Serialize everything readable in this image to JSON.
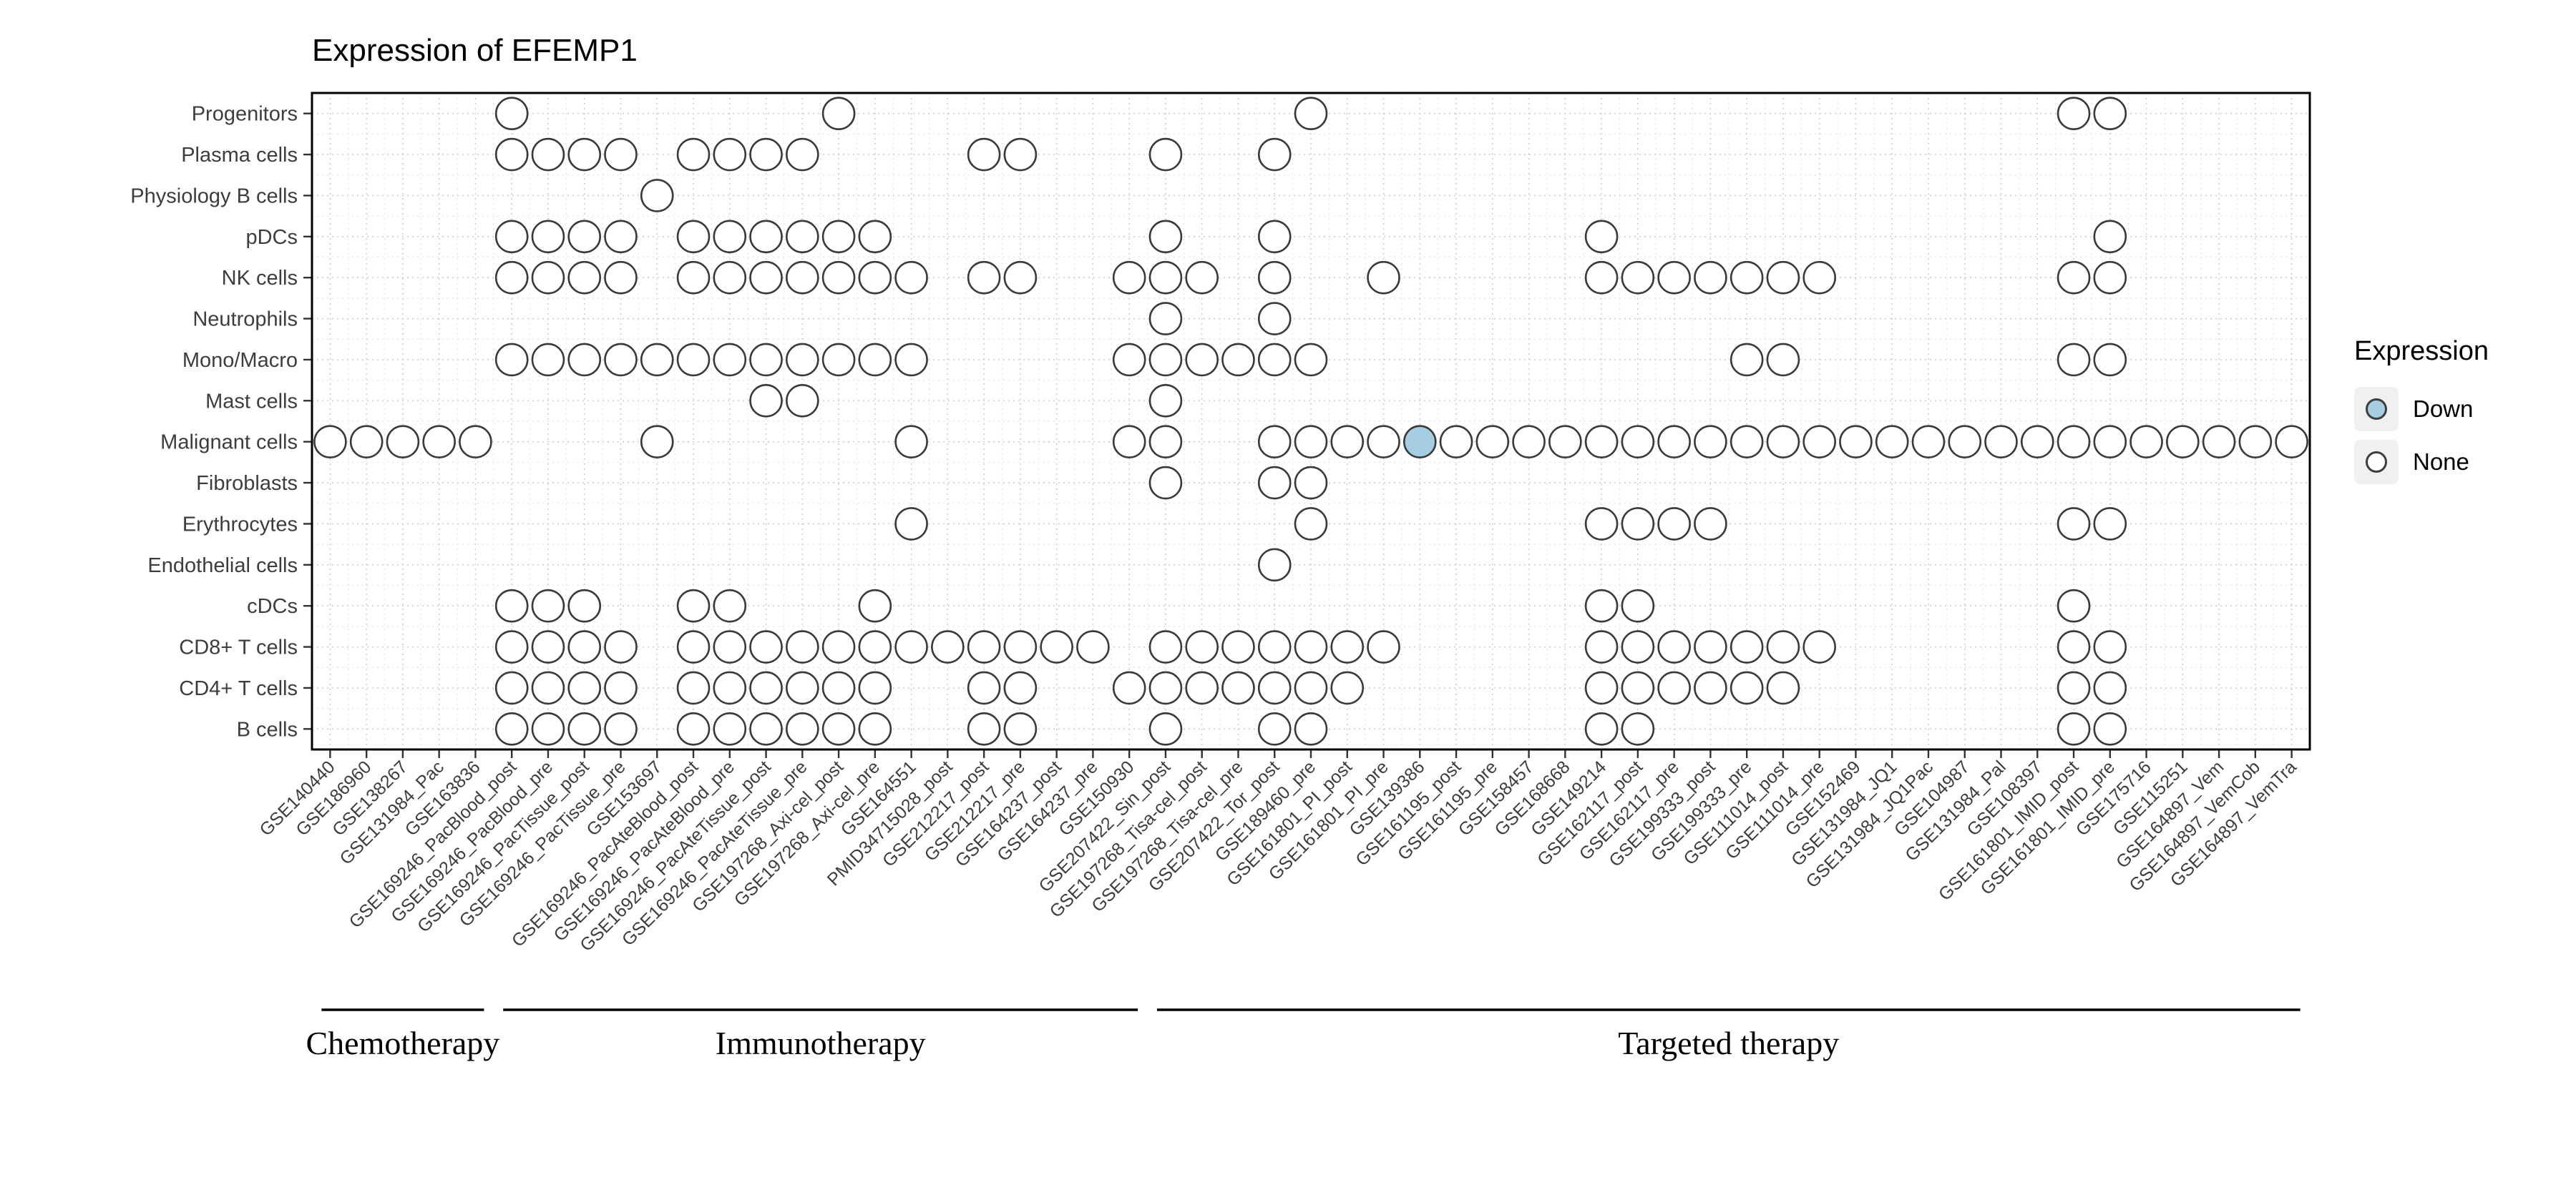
{
  "title": "Expression of EFEMP1",
  "legend": {
    "title": "Expression",
    "items": [
      {
        "label": "Down",
        "color": "#a6cee3"
      },
      {
        "label": "None",
        "color": "#ffffff"
      }
    ]
  },
  "chart_data": {
    "type": "dot-matrix",
    "title": "Expression of EFEMP1",
    "gene": "EFEMP1",
    "x_axis": "dataset",
    "y_axis": "cell type",
    "legend_title": "Expression",
    "legend_values": [
      "Down",
      "None"
    ],
    "rows": [
      "Progenitors",
      "Plasma cells",
      "Physiology B cells",
      "pDCs",
      "NK cells",
      "Neutrophils",
      "Mono/Macro",
      "Mast cells",
      "Malignant cells",
      "Fibroblasts",
      "Erythrocytes",
      "Endothelial cells",
      "cDCs",
      "CD8+ T cells",
      "CD4+ T cells",
      "B cells"
    ],
    "columns": [
      "GSE140440",
      "GSE186960",
      "GSE138267",
      "GSE131984_Pac",
      "GSE163836",
      "GSE169246_PacBlood_post",
      "GSE169246_PacBlood_pre",
      "GSE169246_PacTissue_post",
      "GSE169246_PacTissue_pre",
      "GSE153697",
      "GSE169246_PacAteBlood_post",
      "GSE169246_PacAteBlood_pre",
      "GSE169246_PacAteTissue_post",
      "GSE169246_PacAteTissue_pre",
      "GSE197268_Axi-cel_post",
      "GSE197268_Axi-cel_pre",
      "GSE164551",
      "PMID34715028_post",
      "GSE212217_post",
      "GSE212217_pre",
      "GSE164237_post",
      "GSE164237_pre",
      "GSE150930",
      "GSE207422_Sin_post",
      "GSE197268_Tisa-cel_post",
      "GSE197268_Tisa-cel_pre",
      "GSE207422_Tor_post",
      "GSE189460_pre",
      "GSE161801_PI_post",
      "GSE161801_PI_pre",
      "GSE139386",
      "GSE161195_post",
      "GSE161195_pre",
      "GSE158457",
      "GSE168668",
      "GSE149214",
      "GSE162117_post",
      "GSE162117_pre",
      "GSE199333_post",
      "GSE199333_pre",
      "GSE111014_post",
      "GSE111014_pre",
      "GSE152469",
      "GSE131984_JQ1",
      "GSE131984_JQ1Pac",
      "GSE104987",
      "GSE131984_Pal",
      "GSE108397",
      "GSE161801_IMID_post",
      "GSE161801_IMID_pre",
      "GSE175716",
      "GSE115251",
      "GSE164897_Vem",
      "GSE164897_VemCob",
      "GSE164897_VemTra"
    ],
    "groups": [
      {
        "label": "Chemotherapy",
        "start": 0,
        "end": 4
      },
      {
        "label": "Immunotherapy",
        "start": 5,
        "end": 22
      },
      {
        "label": "Targeted therapy",
        "start": 23,
        "end": 54
      }
    ],
    "dots": [
      {
        "cell_type": "Progenitors",
        "dataset_indices": [
          5,
          14,
          27,
          48,
          49
        ]
      },
      {
        "cell_type": "Plasma cells",
        "dataset_indices": [
          5,
          6,
          7,
          8,
          10,
          11,
          12,
          13,
          18,
          19,
          23,
          26
        ]
      },
      {
        "cell_type": "Physiology B cells",
        "dataset_indices": [
          9
        ]
      },
      {
        "cell_type": "pDCs",
        "dataset_indices": [
          5,
          6,
          7,
          8,
          10,
          11,
          12,
          13,
          14,
          15,
          23,
          26,
          35,
          49
        ]
      },
      {
        "cell_type": "NK cells",
        "dataset_indices": [
          5,
          6,
          7,
          8,
          10,
          11,
          12,
          13,
          14,
          15,
          16,
          18,
          19,
          22,
          23,
          24,
          26,
          29,
          35,
          36,
          37,
          38,
          39,
          40,
          41,
          48,
          49
        ]
      },
      {
        "cell_type": "Neutrophils",
        "dataset_indices": [
          23,
          26
        ]
      },
      {
        "cell_type": "Mono/Macro",
        "dataset_indices": [
          5,
          6,
          7,
          8,
          9,
          10,
          11,
          12,
          13,
          14,
          15,
          16,
          22,
          23,
          24,
          25,
          26,
          27,
          39,
          40,
          48,
          49
        ]
      },
      {
        "cell_type": "Mast cells",
        "dataset_indices": [
          12,
          13,
          23
        ]
      },
      {
        "cell_type": "Malignant cells",
        "dataset_indices": [
          0,
          1,
          2,
          3,
          4,
          9,
          16,
          22,
          23,
          26,
          27,
          28,
          29,
          30,
          31,
          32,
          33,
          34,
          35,
          36,
          37,
          38,
          39,
          40,
          41,
          42,
          43,
          44,
          45,
          46,
          47,
          48,
          49,
          50,
          51,
          52,
          53,
          54
        ]
      },
      {
        "cell_type": "Fibroblasts",
        "dataset_indices": [
          23,
          26,
          27
        ]
      },
      {
        "cell_type": "Erythrocytes",
        "dataset_indices": [
          16,
          27,
          35,
          36,
          37,
          38,
          48,
          49
        ]
      },
      {
        "cell_type": "Endothelial cells",
        "dataset_indices": [
          26
        ]
      },
      {
        "cell_type": "cDCs",
        "dataset_indices": [
          5,
          6,
          7,
          10,
          11,
          15,
          35,
          36,
          48
        ]
      },
      {
        "cell_type": "CD8+ T cells",
        "dataset_indices": [
          5,
          6,
          7,
          8,
          10,
          11,
          12,
          13,
          14,
          15,
          16,
          17,
          18,
          19,
          20,
          21,
          23,
          24,
          25,
          26,
          27,
          28,
          29,
          35,
          36,
          37,
          38,
          39,
          40,
          41,
          48,
          49
        ]
      },
      {
        "cell_type": "CD4+ T cells",
        "dataset_indices": [
          5,
          6,
          7,
          8,
          10,
          11,
          12,
          13,
          14,
          15,
          18,
          19,
          22,
          23,
          24,
          25,
          26,
          27,
          28,
          35,
          36,
          37,
          38,
          39,
          40,
          48,
          49
        ]
      },
      {
        "cell_type": "B cells",
        "dataset_indices": [
          5,
          6,
          7,
          8,
          10,
          11,
          12,
          13,
          14,
          15,
          18,
          19,
          23,
          26,
          27,
          35,
          36,
          48,
          49
        ]
      }
    ],
    "down_dot": {
      "cell_type": "Malignant cells",
      "dataset": "GSE139386"
    },
    "dot_style": {
      "none_fill": "#ffffff",
      "down_fill": "#a6cee3",
      "stroke": "#3a3a3a"
    }
  }
}
